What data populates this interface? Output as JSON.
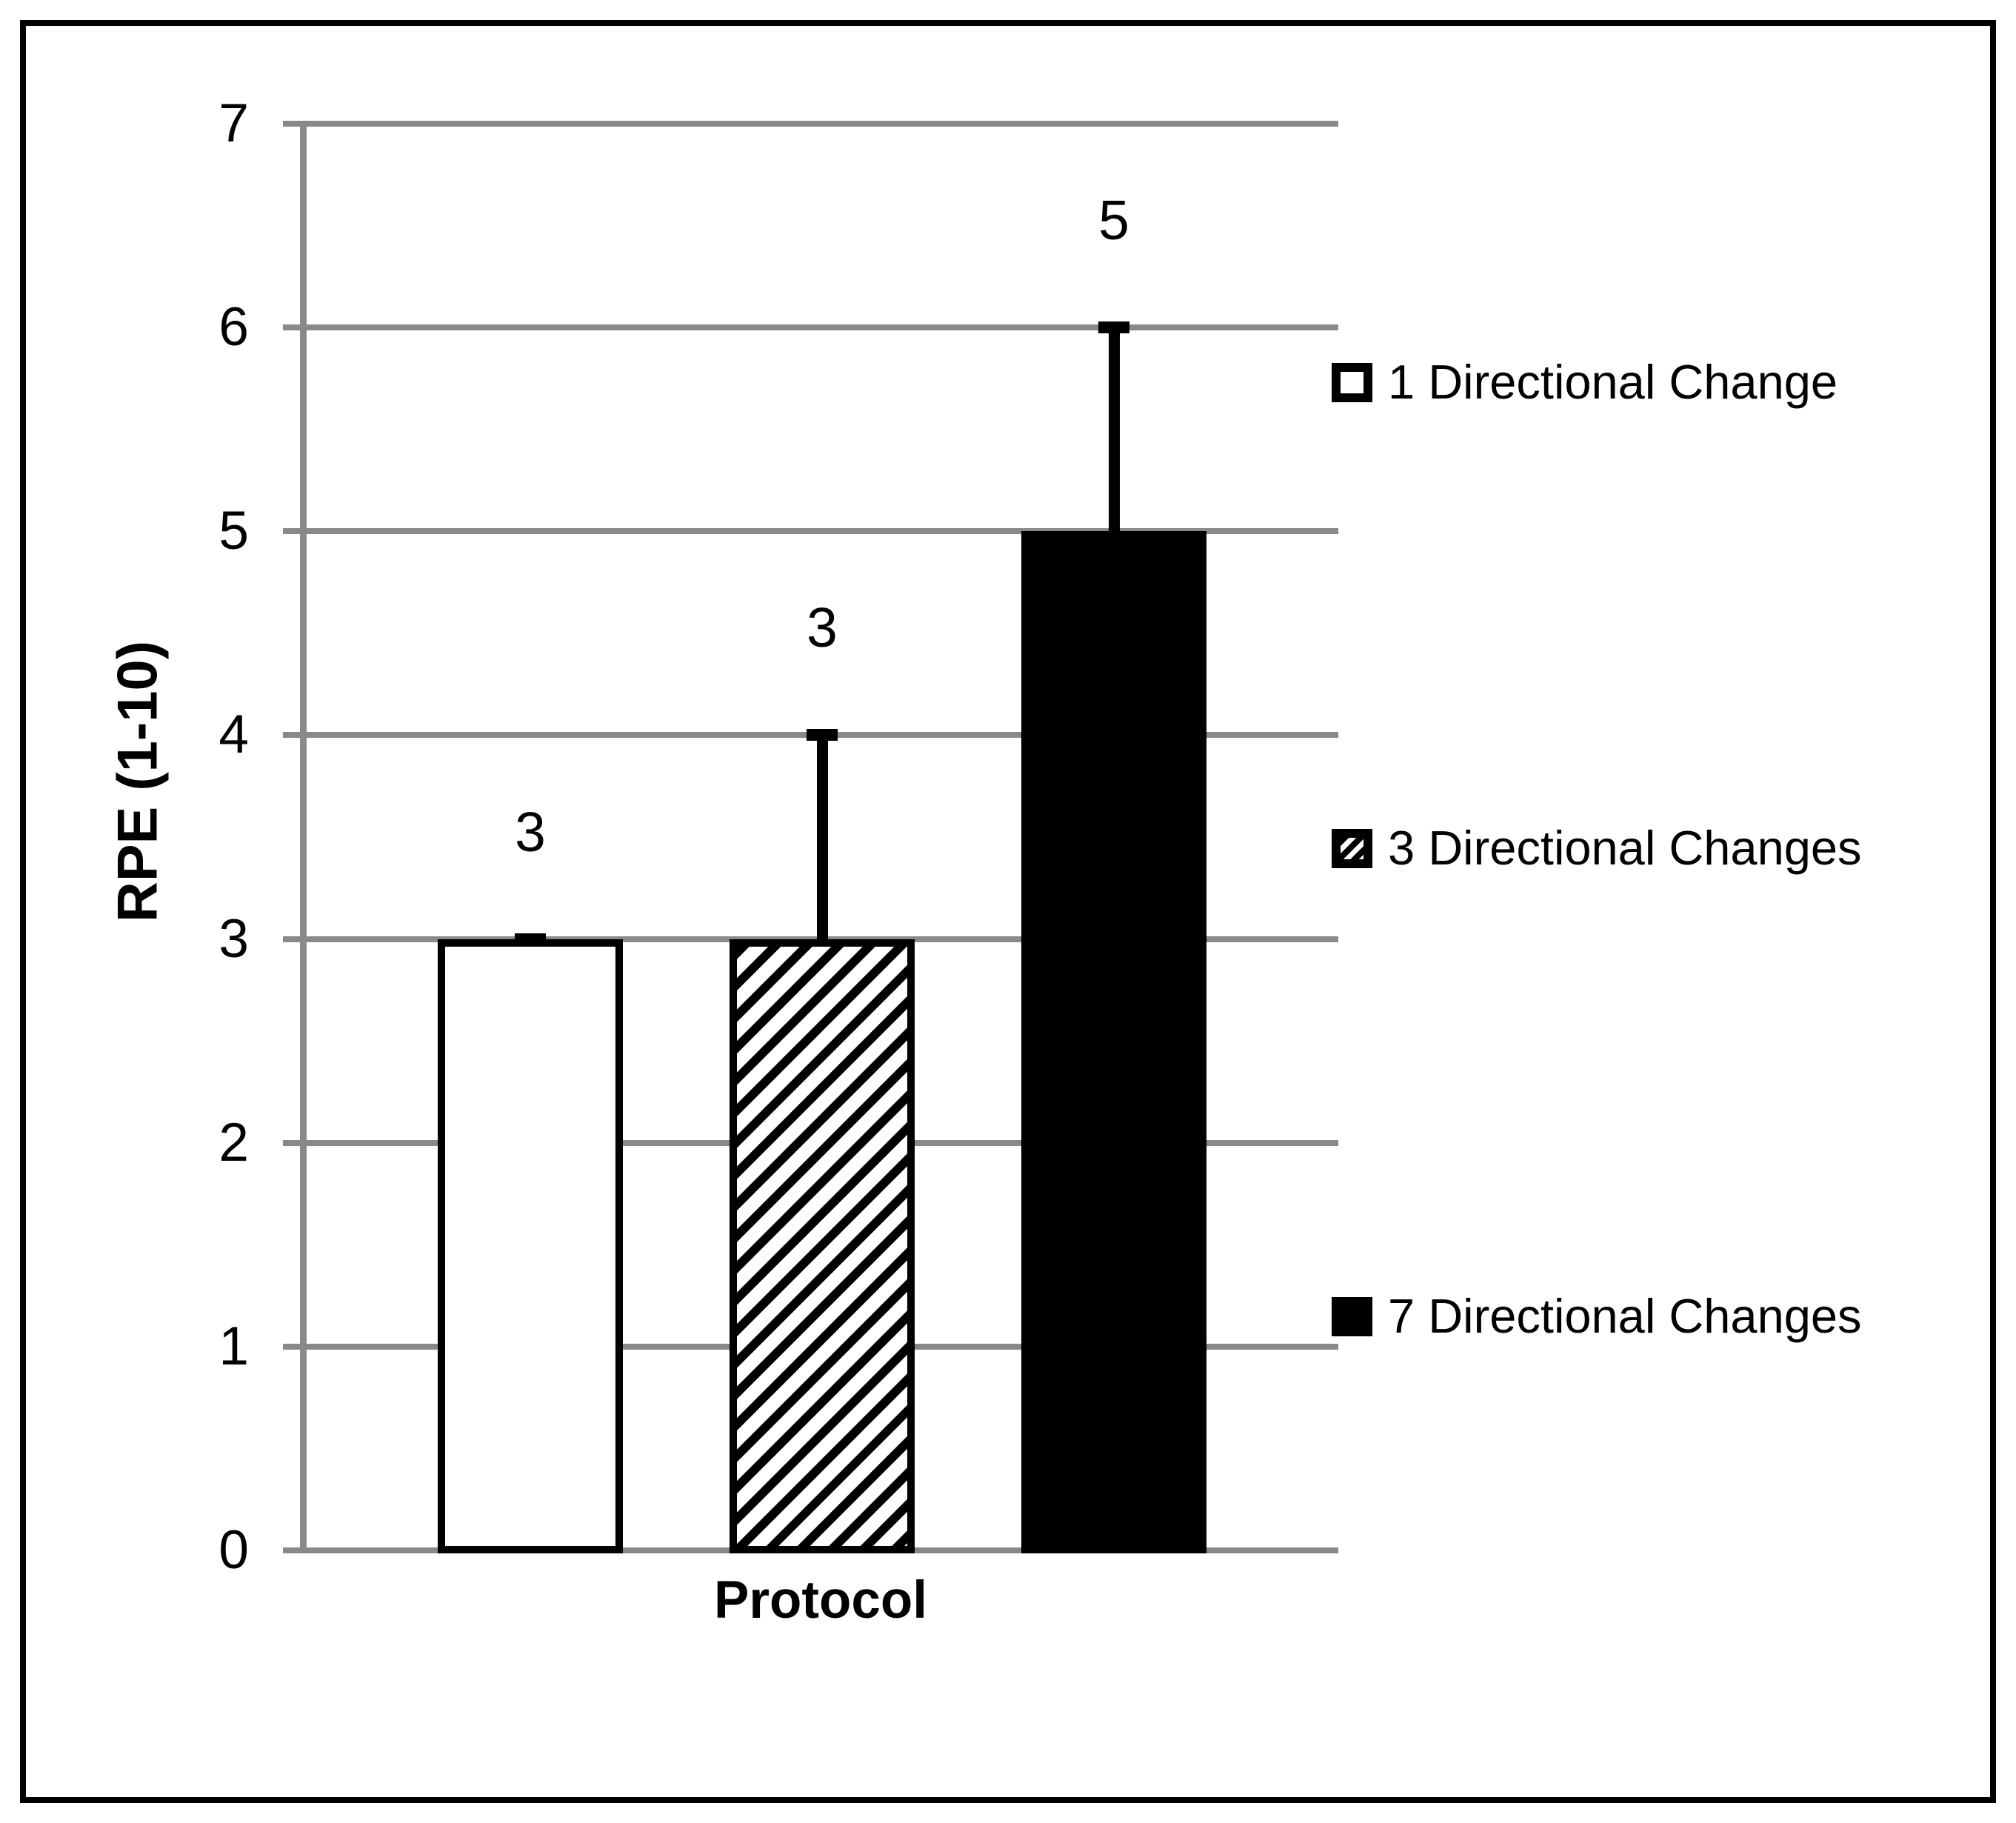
{
  "figure": {
    "background": "#ffffff",
    "border_color": "#000000",
    "gridline_color": "#898989",
    "bar_border_color": "#000000"
  },
  "chart_data": {
    "type": "bar",
    "title": "",
    "xlabel": "Protocol",
    "ylabel": "RPE (1-10)",
    "ylim": [
      0,
      7
    ],
    "yticks": [
      "0",
      "1",
      "2",
      "3",
      "4",
      "5",
      "6",
      "7"
    ],
    "grid": true,
    "legend_position": "right",
    "categories": [
      "Protocol"
    ],
    "series": [
      {
        "name": "1 Directional Change",
        "value": 3,
        "error_plus": 0,
        "data_label": "3",
        "pattern": "solid",
        "fill": "#ffffff"
      },
      {
        "name": "3 Directional Changes",
        "value": 3,
        "error_plus": 1,
        "data_label": "3",
        "pattern": "diagonal-hatch",
        "fill": "#ffffff"
      },
      {
        "name": "7 Directional Changes",
        "value": 5,
        "error_plus": 1,
        "data_label": "5",
        "pattern": "solid",
        "fill": "#000000"
      }
    ]
  }
}
